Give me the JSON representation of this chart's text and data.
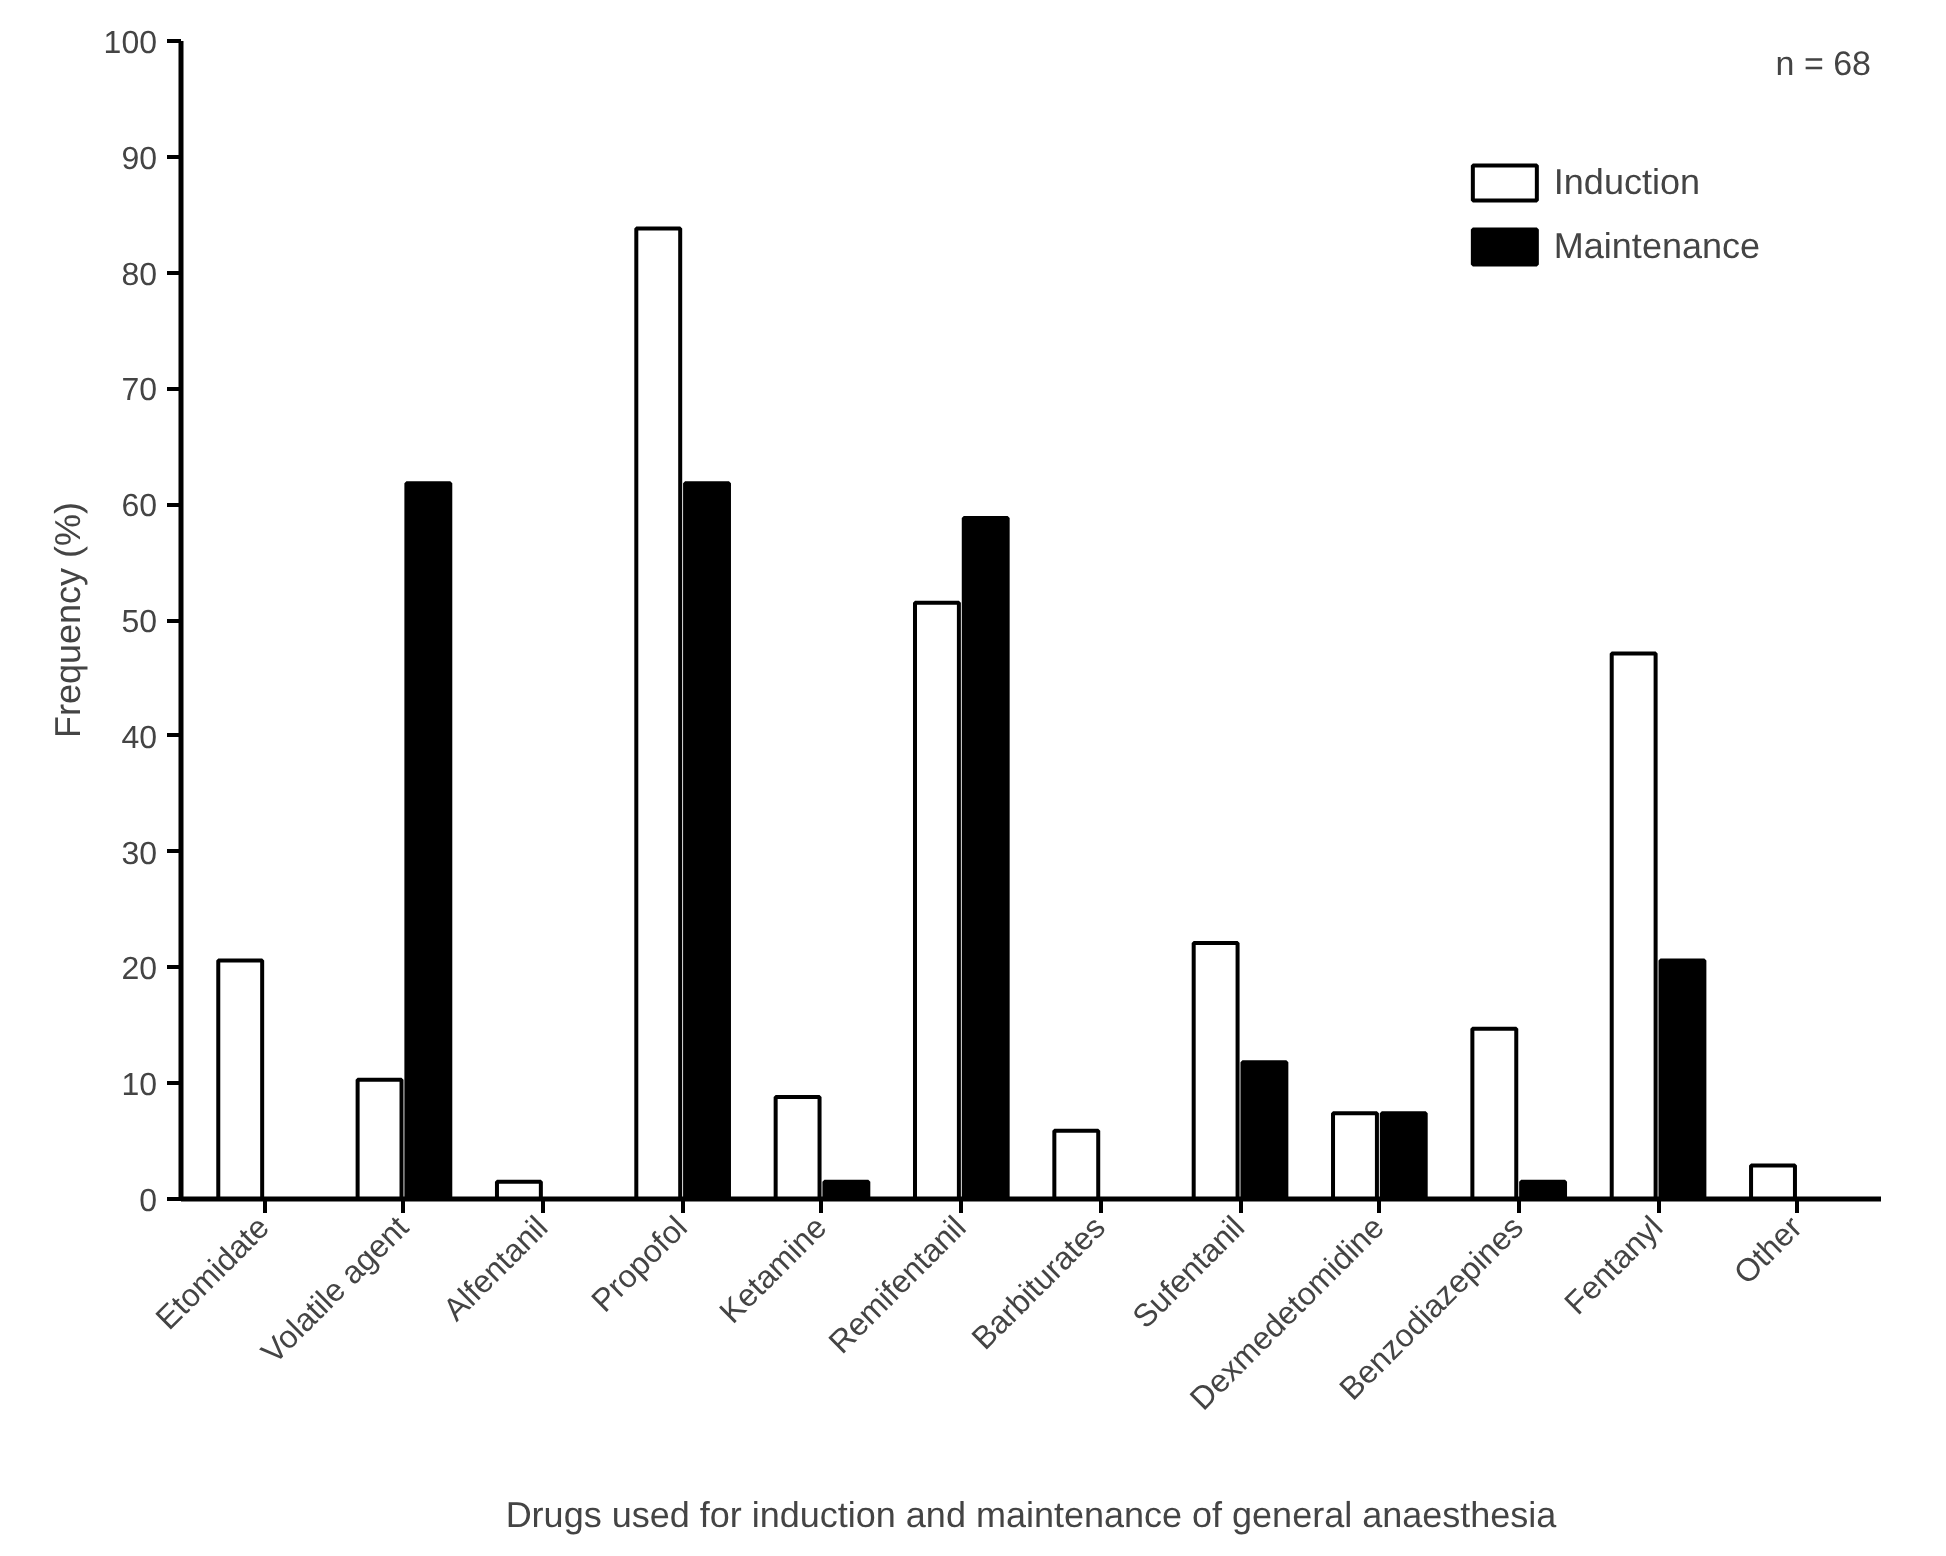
{
  "chart_data": {
    "type": "bar",
    "xlabel": "Drugs used for induction and maintenance of general anaesthesia",
    "ylabel": "Frequency (%)",
    "categories": [
      "Etomidate",
      "Volatile agent",
      "Alfentanil",
      "Propofol",
      "Ketamine",
      "Remifentanil",
      "Barbiturates",
      "Sufentanil",
      "Dexmedetomidine",
      "Benzodiazepines",
      "Fentanyl",
      "Other"
    ],
    "series": [
      {
        "name": "Induction",
        "color": "#ffffff",
        "values": [
          20.6,
          10.3,
          1.5,
          83.8,
          8.8,
          51.5,
          5.9,
          22.1,
          7.4,
          14.7,
          47.1,
          2.9
        ]
      },
      {
        "name": "Maintenance",
        "color": "#000000",
        "values": [
          0,
          61.8,
          0,
          61.8,
          1.5,
          58.8,
          0,
          11.8,
          7.4,
          1.5,
          20.6,
          0
        ]
      }
    ],
    "ylim": [
      0,
      100
    ],
    "yticks": [
      0,
      10,
      20,
      30,
      40,
      50,
      60,
      70,
      80,
      90,
      100
    ],
    "grid": false,
    "legend": "top right",
    "annotations": [
      "n = 68"
    ]
  }
}
